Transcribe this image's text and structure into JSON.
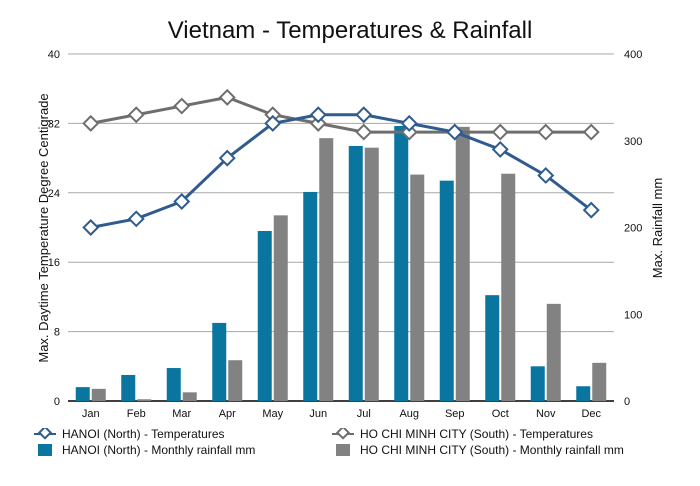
{
  "chart_data": {
    "type": "bar+line",
    "title": "Vietnam - Temperatures & Rainfall",
    "ylabel_left": "Max. Daytime Temperature Degree Centigrade",
    "ylabel_right": "Max. Rainfall mm",
    "ylim_left": [
      0,
      40
    ],
    "ylim_right": [
      0,
      400
    ],
    "yticks_left": [
      "0",
      "8",
      "16",
      "24",
      "32",
      "40"
    ],
    "yticks_right": [
      "0",
      "100",
      "200",
      "300",
      "400"
    ],
    "grid": true,
    "legend_position": "bottom",
    "categories": [
      "Jan",
      "Feb",
      "Mar",
      "Apr",
      "May",
      "Jun",
      "Jul",
      "Aug",
      "Sep",
      "Oct",
      "Nov",
      "Dec"
    ],
    "series": [
      {
        "name": "HANOI (North) - Temperatures",
        "type": "line",
        "axis": "left",
        "color": "#2f5b8e",
        "values": [
          20,
          21,
          23,
          28,
          32,
          33,
          33,
          32,
          31,
          29,
          26,
          22
        ]
      },
      {
        "name": "HO CHI MINH CITY (South)  - Temperatures",
        "type": "line",
        "axis": "left",
        "color": "#6e6e6e",
        "values": [
          32,
          33,
          34,
          35,
          33,
          32,
          31,
          31,
          31,
          31,
          31,
          31
        ]
      },
      {
        "name": "HANOI (North) - Monthly rainfall mm",
        "type": "bar",
        "axis": "right",
        "color": "#0a76a0",
        "values": [
          16,
          30,
          38,
          90,
          196,
          241,
          294,
          317,
          254,
          122,
          40,
          17
        ]
      },
      {
        "name": "HO CHI MINH CITY (South) - Monthly rainfall mm",
        "type": "bar",
        "axis": "right",
        "color": "#828282",
        "values": [
          14,
          2,
          10,
          47,
          214,
          303,
          292,
          261,
          316,
          262,
          112,
          44
        ]
      }
    ]
  }
}
